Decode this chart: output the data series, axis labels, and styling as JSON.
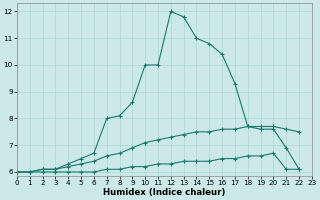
{
  "x": [
    0,
    1,
    2,
    3,
    4,
    5,
    6,
    7,
    8,
    9,
    10,
    11,
    12,
    13,
    14,
    15,
    16,
    17,
    18,
    19,
    20,
    21,
    22,
    23
  ],
  "y_max": [
    6.0,
    6.0,
    6.1,
    6.1,
    6.3,
    6.5,
    6.7,
    8.0,
    8.1,
    8.6,
    10.0,
    10.0,
    12.0,
    11.8,
    11.0,
    10.8,
    10.4,
    9.3,
    7.7,
    7.6,
    7.6,
    6.9,
    6.1,
    null
  ],
  "y_mean": [
    6.0,
    6.0,
    6.1,
    6.1,
    6.2,
    6.3,
    6.4,
    6.6,
    6.7,
    6.9,
    7.1,
    7.2,
    7.3,
    7.4,
    7.5,
    7.5,
    7.6,
    7.6,
    7.7,
    7.7,
    7.7,
    7.6,
    7.5,
    null
  ],
  "y_min": [
    6.0,
    6.0,
    6.0,
    6.0,
    6.0,
    6.0,
    6.0,
    6.1,
    6.1,
    6.2,
    6.2,
    6.3,
    6.3,
    6.4,
    6.4,
    6.4,
    6.5,
    6.5,
    6.6,
    6.6,
    6.7,
    6.1,
    6.1,
    null
  ],
  "line_color": "#1a7a6e",
  "bg_color": "#cce8e8",
  "grid_color": "#aad4d4",
  "xlabel": "Humidex (Indice chaleur)",
  "ylim": [
    5.85,
    12.3
  ],
  "xlim": [
    0,
    23
  ],
  "yticks": [
    6,
    7,
    8,
    9,
    10,
    11,
    12
  ],
  "xticks": [
    0,
    1,
    2,
    3,
    4,
    5,
    6,
    7,
    8,
    9,
    10,
    11,
    12,
    13,
    14,
    15,
    16,
    17,
    18,
    19,
    20,
    21,
    22,
    23
  ],
  "tick_labelsize": 5.2,
  "xlabel_fontsize": 6.2,
  "linewidth": 0.8,
  "markersize": 3.5,
  "markeredgewidth": 0.8
}
